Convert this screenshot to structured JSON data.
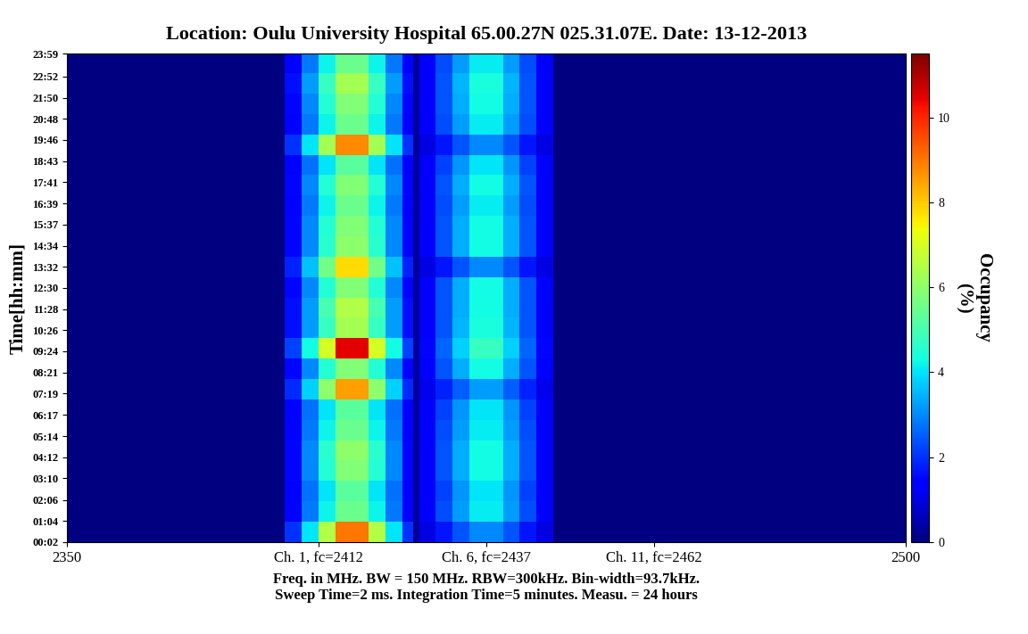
{
  "chart_data": {
    "type": "heatmap",
    "title": "Location: Oulu University Hospital 65.00.27N 025.31.07E. Date: 13-12-2013",
    "xlabel": "Freq. in MHz. BW = 150 MHz. RBW=300kHz. Bin-width=93.7kHz.\nSweep Time=2 ms. Integration Time=5 minutes. Measu. = 24 hours",
    "ylabel": "Time[hh:mm]",
    "colorbar_label": "Occupancy\n(%)",
    "xlim": [
      2350,
      2500
    ],
    "xticks": [
      2350,
      {
        "value": 2395,
        "label": "Ch. 1, fc=2412"
      },
      {
        "value": 2425,
        "label": "Ch. 6, fc=2437"
      },
      {
        "value": 2455,
        "label": "Ch. 11, fc=2462"
      },
      2500
    ],
    "ylim": [
      2,
      1439
    ],
    "yticks": [
      {
        "value": 2,
        "label": "00:02"
      },
      {
        "value": 64,
        "label": "01:04"
      },
      {
        "value": 126,
        "label": "02:06"
      },
      {
        "value": 190,
        "label": "03:10"
      },
      {
        "value": 252,
        "label": "04:12"
      },
      {
        "value": 314,
        "label": "05:14"
      },
      {
        "value": 377,
        "label": "06:17"
      },
      {
        "value": 439,
        "label": "07:19"
      },
      {
        "value": 501,
        "label": "08:21"
      },
      {
        "value": 564,
        "label": "09:24"
      },
      {
        "value": 626,
        "label": "10:26"
      },
      {
        "value": 688,
        "label": "11:28"
      },
      {
        "value": 750,
        "label": "12:30"
      },
      {
        "value": 812,
        "label": "13:32"
      },
      {
        "value": 874,
        "label": "14:34"
      },
      {
        "value": 937,
        "label": "15:37"
      },
      {
        "value": 999,
        "label": "16:39"
      },
      {
        "value": 1061,
        "label": "17:41"
      },
      {
        "value": 1123,
        "label": "18:43"
      },
      {
        "value": 1186,
        "label": "19:46"
      },
      {
        "value": 1248,
        "label": "20:48"
      },
      {
        "value": 1310,
        "label": "21:50"
      },
      {
        "value": 1372,
        "label": "22:52"
      },
      {
        "value": 1439,
        "label": "23:59"
      }
    ],
    "colorbar_lim": [
      0,
      11.5
    ],
    "colorbar_ticks": [
      0,
      2,
      4,
      6,
      8,
      10
    ],
    "x_edges": [
      2350,
      2389,
      2392,
      2395,
      2398,
      2401,
      2404,
      2407,
      2410,
      2412,
      2413,
      2416,
      2419,
      2422,
      2425,
      2428,
      2431,
      2434,
      2437,
      2500
    ],
    "y_edges": [
      2,
      62,
      122,
      182,
      242,
      302,
      362,
      422,
      482,
      542,
      602,
      662,
      722,
      782,
      842,
      902,
      962,
      1022,
      1082,
      1142,
      1202,
      1262,
      1322,
      1382,
      1439
    ],
    "cells": [
      [
        0,
        2.0,
        4.0,
        6.5,
        9.0,
        9.0,
        6.5,
        4.0,
        2.0,
        0.3,
        1.0,
        1.7,
        2.4,
        3.0,
        3.0,
        2.4,
        1.7,
        1.0,
        0
      ],
      [
        0,
        1.4,
        2.8,
        4.2,
        5.5,
        5.5,
        4.2,
        2.8,
        1.4,
        0.3,
        1.3,
        2.3,
        3.2,
        4.1,
        4.1,
        3.2,
        2.3,
        1.3,
        0
      ],
      [
        0,
        1.3,
        2.7,
        4.0,
        5.3,
        5.3,
        4.0,
        2.7,
        1.3,
        0.3,
        1.3,
        2.2,
        3.1,
        4.0,
        4.0,
        3.1,
        2.2,
        1.3,
        0
      ],
      [
        0,
        1.5,
        3.0,
        4.5,
        5.8,
        5.8,
        4.5,
        3.0,
        1.5,
        0.3,
        1.4,
        2.4,
        3.4,
        4.3,
        4.3,
        3.4,
        2.4,
        1.4,
        0
      ],
      [
        0,
        1.5,
        3.0,
        4.6,
        6.0,
        6.0,
        4.6,
        3.0,
        1.5,
        0.3,
        1.4,
        2.4,
        3.4,
        4.3,
        4.3,
        3.4,
        2.4,
        1.4,
        0
      ],
      [
        0,
        1.4,
        2.8,
        4.2,
        5.5,
        5.5,
        4.2,
        2.8,
        1.4,
        0.3,
        1.3,
        2.3,
        3.2,
        4.1,
        4.1,
        3.2,
        2.3,
        1.3,
        0
      ],
      [
        0,
        1.3,
        2.7,
        4.0,
        5.3,
        5.3,
        4.0,
        2.7,
        1.3,
        0.3,
        1.3,
        2.2,
        3.1,
        4.0,
        4.0,
        3.1,
        2.2,
        1.3,
        0
      ],
      [
        0,
        1.9,
        3.8,
        6.0,
        8.5,
        8.5,
        6.0,
        3.8,
        1.9,
        0.3,
        1.1,
        1.8,
        2.5,
        3.2,
        3.2,
        2.5,
        1.8,
        1.1,
        0
      ],
      [
        0,
        1.5,
        3.0,
        4.5,
        5.8,
        5.8,
        4.5,
        3.0,
        1.5,
        0.3,
        1.4,
        2.4,
        3.4,
        4.3,
        4.3,
        3.4,
        2.4,
        1.4,
        0
      ],
      [
        0,
        2.2,
        4.3,
        7.0,
        10.5,
        10.5,
        7.0,
        4.3,
        2.2,
        0.3,
        1.5,
        2.6,
        3.8,
        4.8,
        4.8,
        3.8,
        2.6,
        1.5,
        0
      ],
      [
        0,
        1.6,
        3.2,
        4.8,
        6.3,
        6.3,
        4.8,
        3.2,
        1.6,
        0.3,
        1.4,
        2.4,
        3.5,
        4.4,
        4.4,
        3.5,
        2.4,
        1.4,
        0
      ],
      [
        0,
        1.6,
        3.2,
        5.0,
        6.5,
        6.5,
        5.0,
        3.2,
        1.6,
        0.3,
        1.4,
        2.4,
        3.4,
        4.3,
        4.3,
        3.4,
        2.4,
        1.4,
        0
      ],
      [
        0,
        1.5,
        3.0,
        4.5,
        5.8,
        5.8,
        4.5,
        3.0,
        1.5,
        0.3,
        1.4,
        2.4,
        3.4,
        4.3,
        4.3,
        3.4,
        2.4,
        1.4,
        0
      ],
      [
        0,
        1.8,
        3.6,
        5.6,
        7.8,
        7.8,
        5.6,
        3.6,
        1.8,
        0.3,
        1.0,
        1.7,
        2.4,
        3.0,
        3.0,
        2.4,
        1.7,
        1.0,
        0
      ],
      [
        0,
        1.5,
        3.0,
        4.6,
        6.0,
        6.0,
        4.6,
        3.0,
        1.5,
        0.3,
        1.4,
        2.4,
        3.4,
        4.3,
        4.3,
        3.4,
        2.4,
        1.4,
        0
      ],
      [
        0,
        1.5,
        3.0,
        4.5,
        5.8,
        5.8,
        4.5,
        3.0,
        1.5,
        0.3,
        1.4,
        2.4,
        3.4,
        4.3,
        4.3,
        3.4,
        2.4,
        1.4,
        0
      ],
      [
        0,
        1.4,
        2.8,
        4.2,
        5.5,
        5.5,
        4.2,
        2.8,
        1.4,
        0.3,
        1.3,
        2.3,
        3.2,
        4.1,
        4.1,
        3.2,
        2.3,
        1.3,
        0
      ],
      [
        0,
        1.5,
        3.0,
        4.5,
        5.8,
        5.8,
        4.5,
        3.0,
        1.5,
        0.3,
        1.4,
        2.4,
        3.4,
        4.3,
        4.3,
        3.4,
        2.4,
        1.4,
        0
      ],
      [
        0,
        1.3,
        2.7,
        4.0,
        5.3,
        5.3,
        4.0,
        2.7,
        1.3,
        0.3,
        1.3,
        2.2,
        3.1,
        4.0,
        4.0,
        3.1,
        2.2,
        1.3,
        0
      ],
      [
        0,
        2.0,
        4.0,
        6.3,
        8.8,
        8.8,
        6.3,
        4.0,
        2.0,
        0.3,
        1.0,
        1.7,
        2.4,
        3.0,
        3.0,
        2.4,
        1.7,
        1.0,
        0
      ],
      [
        0,
        1.4,
        2.8,
        4.2,
        5.5,
        5.5,
        4.2,
        2.8,
        1.4,
        0.3,
        1.3,
        2.3,
        3.2,
        4.1,
        4.1,
        3.2,
        2.3,
        1.3,
        0
      ],
      [
        0,
        1.5,
        3.0,
        4.5,
        5.8,
        5.8,
        4.5,
        3.0,
        1.5,
        0.3,
        1.4,
        2.4,
        3.4,
        4.3,
        4.3,
        3.4,
        2.4,
        1.4,
        0
      ],
      [
        0,
        1.6,
        3.2,
        4.8,
        6.3,
        6.3,
        4.8,
        3.2,
        1.6,
        0.3,
        1.4,
        2.4,
        3.5,
        4.4,
        4.4,
        3.5,
        2.4,
        1.4,
        0
      ],
      [
        0,
        1.4,
        2.8,
        4.2,
        5.5,
        5.5,
        4.2,
        2.8,
        1.4,
        0.3,
        1.3,
        2.3,
        3.2,
        4.1,
        4.1,
        3.2,
        2.3,
        1.3,
        0
      ]
    ]
  }
}
